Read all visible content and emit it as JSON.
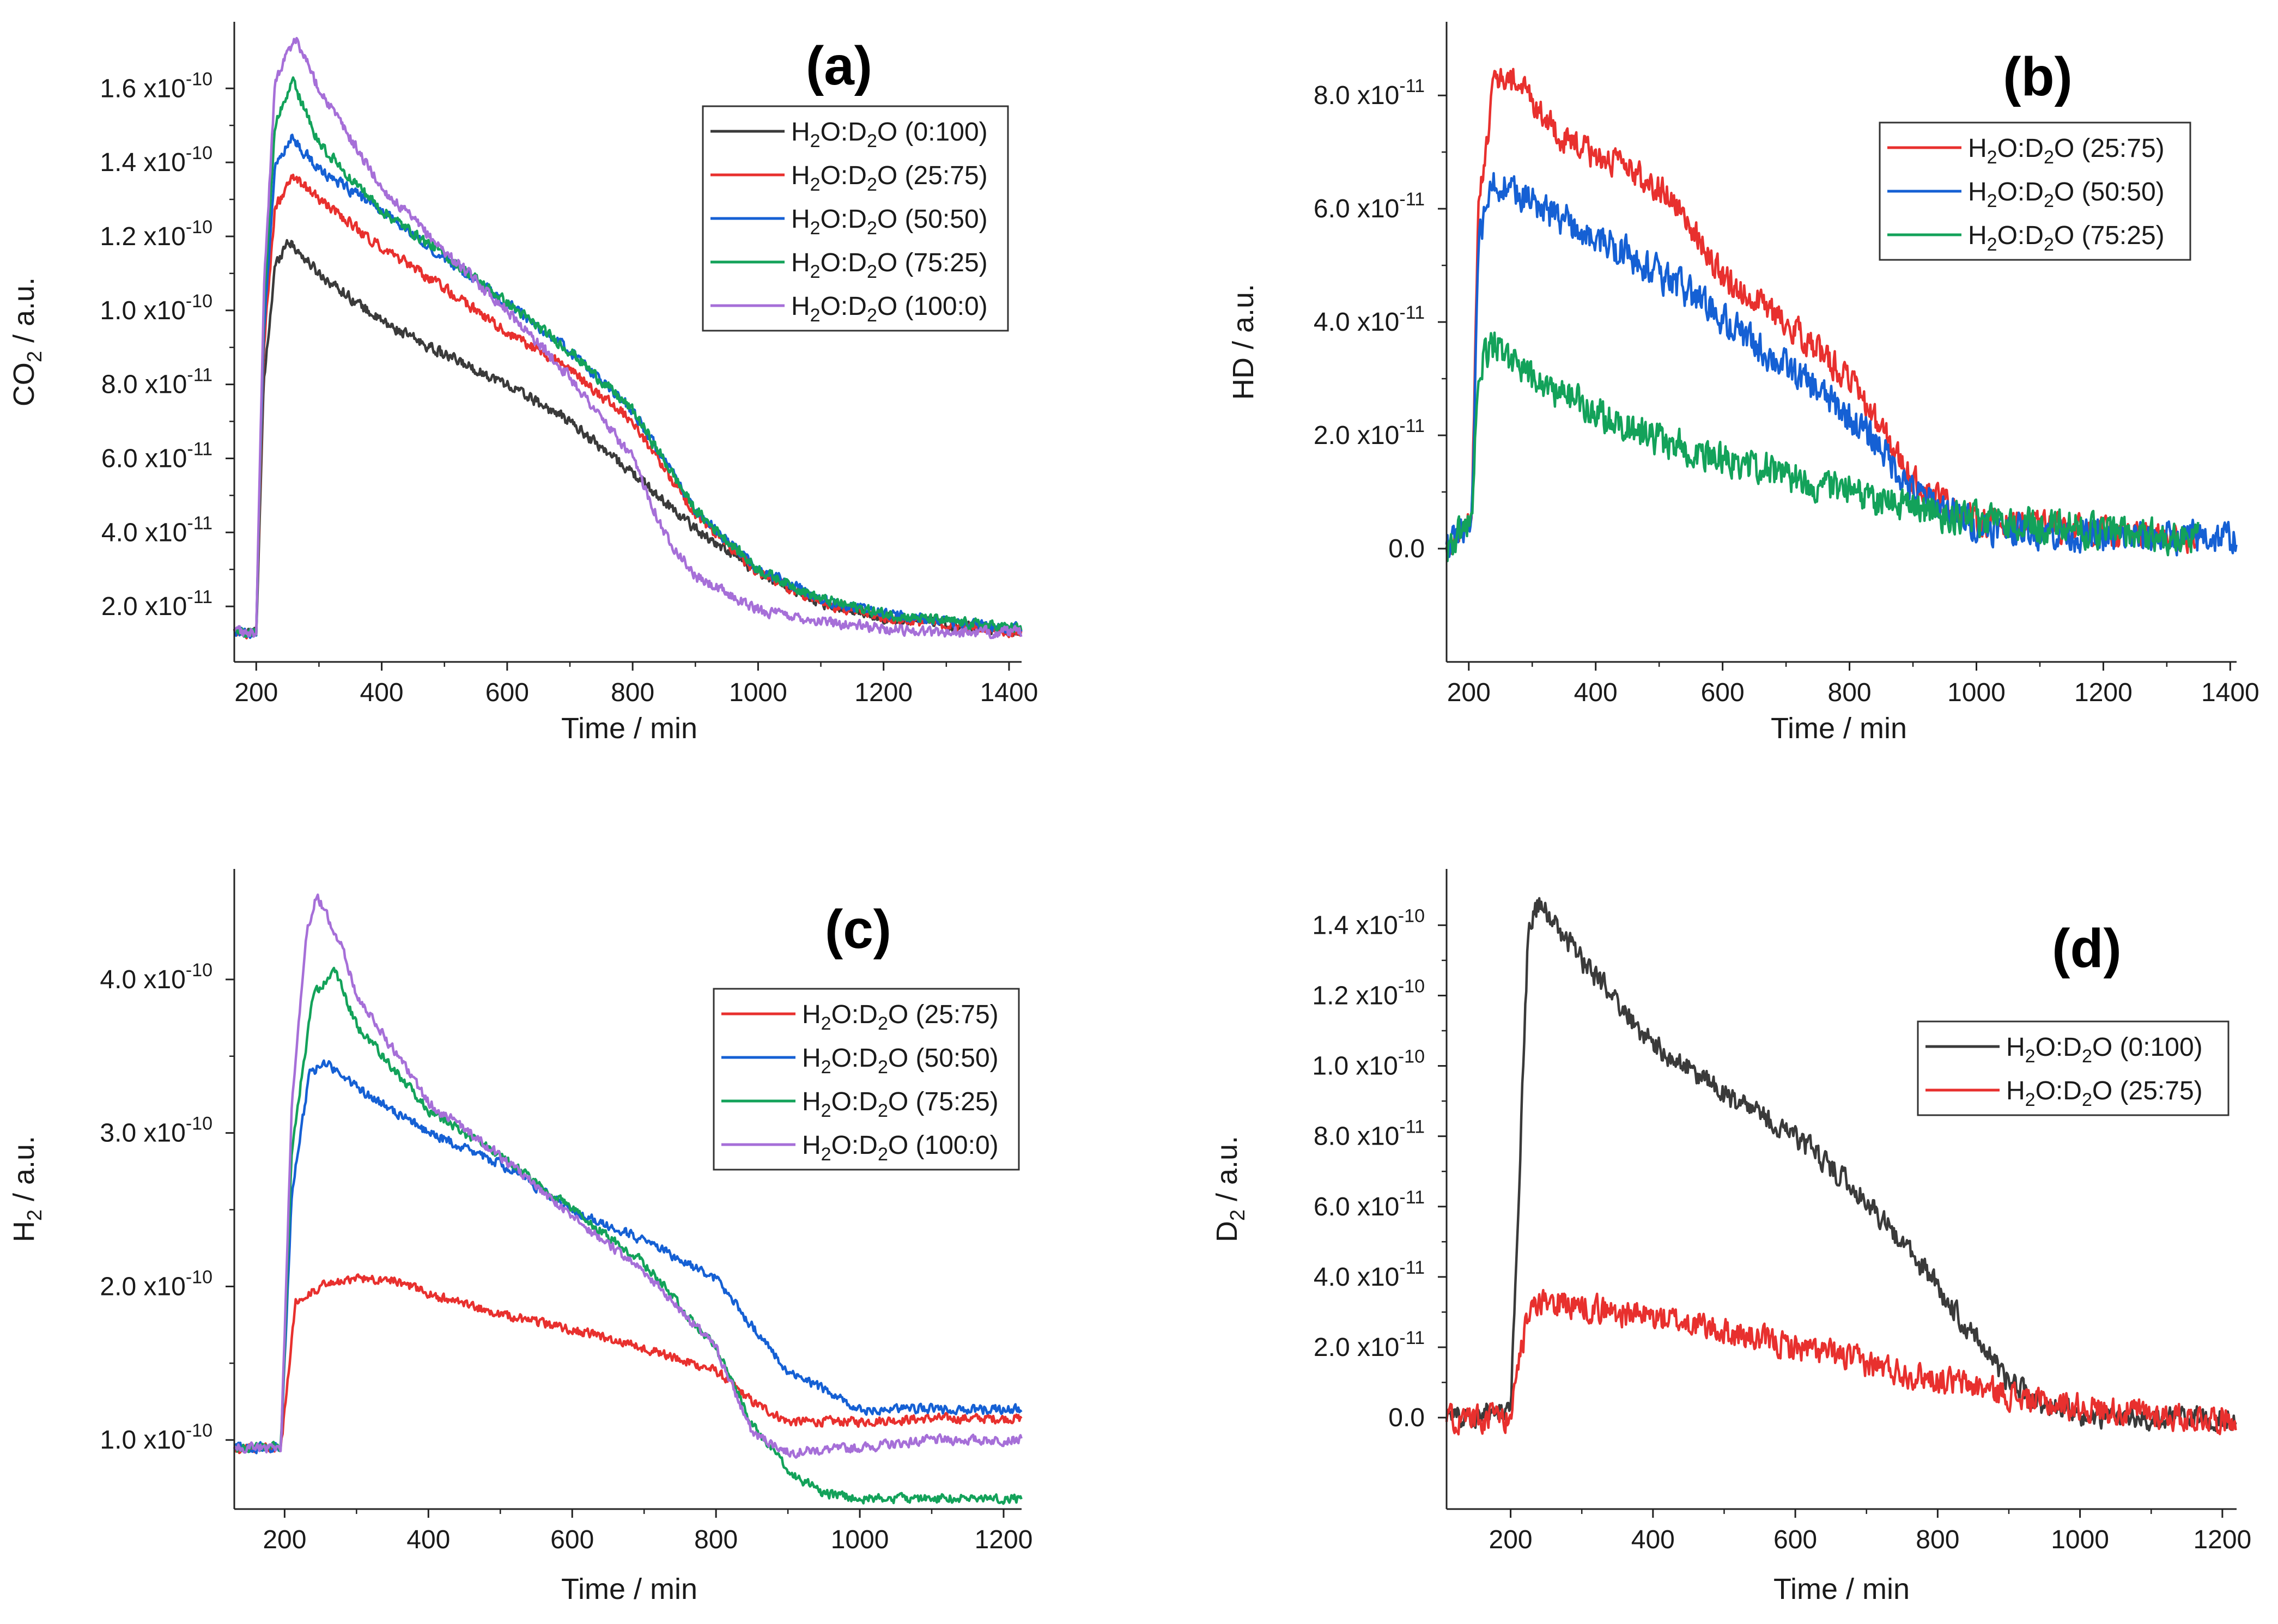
{
  "chart_data": [
    {
      "id": "a",
      "type": "line",
      "panel_label": "(a)",
      "xlabel": "Time / min",
      "ylabel": "CO₂ / a.u.",
      "ylabel_main": "CO",
      "ylabel_sub": "2",
      "ylabel_tail": " / a.u.",
      "xlim": [
        165,
        1420
      ],
      "ylim": [
        5e-12,
        1.78e-10
      ],
      "xticks": [
        200,
        400,
        600,
        800,
        1000,
        1200,
        1400
      ],
      "yticks": [
        {
          "value": 2e-11,
          "mant": "2.0 x10",
          "exp": "-11"
        },
        {
          "value": 4e-11,
          "mant": "4.0 x10",
          "exp": "-11"
        },
        {
          "value": 6e-11,
          "mant": "6.0 x10",
          "exp": "-11"
        },
        {
          "value": 8e-11,
          "mant": "8.0 x10",
          "exp": "-11"
        },
        {
          "value": 1e-10,
          "mant": "1.0 x10",
          "exp": "-10"
        },
        {
          "value": 1.2e-10,
          "mant": "1.2 x10",
          "exp": "-10"
        },
        {
          "value": 1.4e-10,
          "mant": "1.4 x10",
          "exp": "-10"
        },
        {
          "value": 1.6e-10,
          "mant": "1.6 x10",
          "exp": "-10"
        }
      ],
      "legend_position": "top-right",
      "series": [
        {
          "name": "H₂O:D₂O (0:100)",
          "ratio": "(0:100)",
          "color": "#3a3a3a",
          "noise": 0.022,
          "x": [
            165,
            200,
            212,
            230,
            250,
            300,
            400,
            500,
            600,
            700,
            800,
            900,
            1000,
            1100,
            1200,
            1300,
            1420
          ],
          "y": [
            1.3e-11,
            1.3e-11,
            8e-11,
            1.12e-10,
            1.19e-10,
            1.1e-10,
            9.7e-11,
            8.8e-11,
            8e-11,
            7e-11,
            5.6e-11,
            4.1e-11,
            2.9e-11,
            2.1e-11,
            1.7e-11,
            1.5e-11,
            1.3e-11
          ]
        },
        {
          "name": "H₂O:D₂O (25:75)",
          "ratio": "(25:75)",
          "color": "#e8302e",
          "noise": 0.022,
          "x": [
            165,
            200,
            212,
            230,
            260,
            300,
            400,
            500,
            600,
            700,
            800,
            900,
            1000,
            1100,
            1200,
            1300,
            1420
          ],
          "y": [
            1.3e-11,
            1.3e-11,
            9e-11,
            1.28e-10,
            1.36e-10,
            1.3e-10,
            1.17e-10,
            1.06e-10,
            9.4e-11,
            8.4e-11,
            7e-11,
            4.5e-11,
            2.9e-11,
            2.1e-11,
            1.7e-11,
            1.5e-11,
            1.3e-11
          ]
        },
        {
          "name": "H₂O:D₂O (50:50)",
          "ratio": "(50:50)",
          "color": "#1560d4",
          "noise": 0.022,
          "x": [
            165,
            200,
            212,
            230,
            255,
            300,
            400,
            500,
            600,
            700,
            800,
            900,
            1000,
            1100,
            1200,
            1300,
            1420
          ],
          "y": [
            1.3e-11,
            1.3e-11,
            9.5e-11,
            1.38e-10,
            1.47e-10,
            1.38e-10,
            1.27e-10,
            1.14e-10,
            1.02e-10,
            8.9e-11,
            7.3e-11,
            4.6e-11,
            3e-11,
            2.2e-11,
            1.8e-11,
            1.6e-11,
            1.4e-11
          ]
        },
        {
          "name": "H₂O:D₂O (75:25)",
          "ratio": "(75:25)",
          "color": "#13a25a",
          "noise": 0.022,
          "x": [
            165,
            200,
            212,
            230,
            258,
            300,
            400,
            500,
            600,
            700,
            800,
            900,
            1000,
            1100,
            1200,
            1300,
            1420
          ],
          "y": [
            1.3e-11,
            1.3e-11,
            1e-10,
            1.5e-10,
            1.62e-10,
            1.45e-10,
            1.27e-10,
            1.15e-10,
            1.02e-10,
            8.9e-11,
            7.3e-11,
            4.6e-11,
            3e-11,
            2.2e-11,
            1.8e-11,
            1.6e-11,
            1.4e-11
          ]
        },
        {
          "name": "H₂O:D₂O (100:0)",
          "ratio": "(100:0)",
          "color": "#a66fd8",
          "noise": 0.022,
          "x": [
            165,
            200,
            212,
            230,
            262,
            300,
            400,
            500,
            600,
            700,
            800,
            850,
            900,
            1000,
            1100,
            1200,
            1300,
            1420
          ],
          "y": [
            1.3e-11,
            1.3e-11,
            1.05e-10,
            1.62e-10,
            1.74e-10,
            1.6e-10,
            1.33e-10,
            1.16e-10,
            1e-10,
            8.2e-11,
            6e-11,
            4e-11,
            2.8e-11,
            1.9e-11,
            1.6e-11,
            1.4e-11,
            1.3e-11,
            1.3e-11
          ]
        }
      ]
    },
    {
      "id": "b",
      "type": "line",
      "panel_label": "(b)",
      "xlabel": "Time / min",
      "ylabel": "HD / a.u.",
      "ylabel_main": "HD / a.u.",
      "ylabel_sub": "",
      "ylabel_tail": "",
      "xlim": [
        165,
        1410
      ],
      "ylim": [
        -2e-11,
        9.3e-11
      ],
      "xticks": [
        200,
        400,
        600,
        800,
        1000,
        1200,
        1400
      ],
      "yticks": [
        {
          "value": 0,
          "mant": "0.0",
          "exp": ""
        },
        {
          "value": 2e-11,
          "mant": "2.0 x10",
          "exp": "-11"
        },
        {
          "value": 4e-11,
          "mant": "4.0 x10",
          "exp": "-11"
        },
        {
          "value": 6e-11,
          "mant": "6.0 x10",
          "exp": "-11"
        },
        {
          "value": 8e-11,
          "mant": "8.0 x10",
          "exp": "-11"
        }
      ],
      "legend_position": "top-right",
      "series": [
        {
          "name": "H₂O:D₂O (25:75)",
          "ratio": "(25:75)",
          "color": "#e8302e",
          "noise": 0.06,
          "x": [
            165,
            205,
            215,
            240,
            280,
            350,
            450,
            520,
            600,
            700,
            800,
            900,
            1000,
            1100,
            1200,
            1300,
            1350
          ],
          "y": [
            0,
            5e-12,
            6e-11,
            8.3e-11,
            8.2e-11,
            7.2e-11,
            6.7e-11,
            6.2e-11,
            4.8e-11,
            4e-11,
            3e-11,
            1.2e-11,
            5e-12,
            4e-12,
            3e-12,
            2e-12,
            2e-12
          ]
        },
        {
          "name": "H₂O:D₂O (50:50)",
          "ratio": "(50:50)",
          "color": "#1560d4",
          "noise": 0.07,
          "x": [
            165,
            205,
            215,
            240,
            280,
            350,
            450,
            550,
            650,
            750,
            850,
            900,
            1000,
            1100,
            1200,
            1300,
            1410
          ],
          "y": [
            0,
            5e-12,
            5.5e-11,
            6.5e-11,
            6.2e-11,
            5.8e-11,
            5.2e-11,
            4.5e-11,
            3.6e-11,
            2.8e-11,
            1.8e-11,
            1e-11,
            4e-12,
            3e-12,
            2e-12,
            2e-12,
            2e-12
          ]
        },
        {
          "name": "H₂O:D₂O (75:25)",
          "ratio": "(75:25)",
          "color": "#13a25a",
          "noise": 0.07,
          "x": [
            165,
            205,
            215,
            240,
            300,
            400,
            500,
            600,
            700,
            800,
            900,
            1000,
            1100,
            1200,
            1300,
            1350
          ],
          "y": [
            0,
            5e-12,
            3.2e-11,
            3.6e-11,
            3e-11,
            2.4e-11,
            1.9e-11,
            1.6e-11,
            1.3e-11,
            1e-11,
            7e-12,
            5e-12,
            4e-12,
            3e-12,
            2e-12,
            2e-12
          ]
        }
      ]
    },
    {
      "id": "c",
      "type": "line",
      "panel_label": "(c)",
      "xlabel": "Time / min",
      "ylabel": "H₂ / a.u.",
      "ylabel_main": "H",
      "ylabel_sub": "2",
      "ylabel_tail": " / a.u.",
      "xlim": [
        130,
        1225
      ],
      "ylim": [
        5.5e-11,
        4.72e-10
      ],
      "xticks": [
        200,
        400,
        600,
        800,
        1000,
        1200
      ],
      "yticks": [
        {
          "value": 1e-10,
          "mant": "1.0 x10",
          "exp": "-10"
        },
        {
          "value": 2e-10,
          "mant": "2.0 x10",
          "exp": "-10"
        },
        {
          "value": 3e-10,
          "mant": "3.0 x10",
          "exp": "-10"
        },
        {
          "value": 4e-10,
          "mant": "4.0 x10",
          "exp": "-10"
        }
      ],
      "legend_position": "top-right",
      "series": [
        {
          "name": "H₂O:D₂O (25:75)",
          "ratio": "(25:75)",
          "color": "#e8302e",
          "noise": 0.02,
          "x": [
            130,
            195,
            215,
            250,
            300,
            350,
            400,
            500,
            600,
            700,
            800,
            850,
            900,
            1000,
            1100,
            1225
          ],
          "y": [
            9.5e-11,
            9.5e-11,
            1.9e-10,
            2e-10,
            2.05e-10,
            2.05e-10,
            1.95e-10,
            1.82e-10,
            1.72e-10,
            1.6e-10,
            1.45e-10,
            1.25e-10,
            1.12e-10,
            1.12e-10,
            1.14e-10,
            1.14e-10
          ]
        },
        {
          "name": "H₂O:D₂O (50:50)",
          "ratio": "(50:50)",
          "color": "#1560d4",
          "noise": 0.02,
          "x": [
            130,
            195,
            210,
            235,
            260,
            300,
            400,
            500,
            600,
            700,
            800,
            840,
            900,
            1000,
            1100,
            1225
          ],
          "y": [
            9.5e-11,
            9.5e-11,
            2.6e-10,
            3.4e-10,
            3.45e-10,
            3.3e-10,
            3e-10,
            2.8e-10,
            2.5e-10,
            2.3e-10,
            2.05e-10,
            1.8e-10,
            1.45e-10,
            1.2e-10,
            1.2e-10,
            1.2e-10
          ]
        },
        {
          "name": "H₂O:D₂O (75:25)",
          "ratio": "(75:25)",
          "color": "#13a25a",
          "noise": 0.02,
          "x": [
            130,
            195,
            210,
            240,
            270,
            300,
            400,
            500,
            600,
            700,
            800,
            850,
            900,
            950,
            1000,
            1225
          ],
          "y": [
            9.5e-11,
            9.5e-11,
            2.9e-10,
            3.9e-10,
            4.05e-10,
            3.7e-10,
            3.15e-10,
            2.85e-10,
            2.5e-10,
            2.15e-10,
            1.6e-10,
            1.1e-10,
            8e-11,
            6.5e-11,
            6.2e-11,
            6.2e-11
          ]
        },
        {
          "name": "H₂O:D₂O (100:0)",
          "ratio": "(100:0)",
          "color": "#a66fd8",
          "noise": 0.02,
          "x": [
            130,
            195,
            210,
            230,
            245,
            280,
            300,
            400,
            500,
            600,
            700,
            800,
            850,
            900,
            1000,
            1100,
            1225
          ],
          "y": [
            9.5e-11,
            9.5e-11,
            3.2e-10,
            4.3e-10,
            4.55e-10,
            4.2e-10,
            3.9e-10,
            3.2e-10,
            2.85e-10,
            2.45e-10,
            2.1e-10,
            1.6e-10,
            1.05e-10,
            9.2e-11,
            9.5e-11,
            1e-10,
            1e-10
          ]
        }
      ]
    },
    {
      "id": "d",
      "type": "line",
      "panel_label": "(d)",
      "xlabel": "Time / min",
      "ylabel": "D₂ / a.u.",
      "ylabel_main": "D",
      "ylabel_sub": "2",
      "ylabel_tail": " / a.u.",
      "xlim": [
        110,
        1220
      ],
      "ylim": [
        -2.6e-11,
        1.56e-10
      ],
      "xticks": [
        200,
        400,
        600,
        800,
        1000,
        1200
      ],
      "yticks": [
        {
          "value": 0,
          "mant": "0.0",
          "exp": ""
        },
        {
          "value": 2e-11,
          "mant": "2.0 x10",
          "exp": "-11"
        },
        {
          "value": 4e-11,
          "mant": "4.0 x10",
          "exp": "-11"
        },
        {
          "value": 6e-11,
          "mant": "6.0 x10",
          "exp": "-11"
        },
        {
          "value": 8e-11,
          "mant": "8.0 x10",
          "exp": "-11"
        },
        {
          "value": 1e-10,
          "mant": "1.0 x10",
          "exp": "-10"
        },
        {
          "value": 1.2e-10,
          "mant": "1.2 x10",
          "exp": "-10"
        },
        {
          "value": 1.4e-10,
          "mant": "1.4 x10",
          "exp": "-10"
        }
      ],
      "legend_position": "right",
      "series": [
        {
          "name": "H₂O:D₂O (0:100)",
          "ratio": "(0:100)",
          "color": "#3a3a3a",
          "noise": 0.05,
          "x": [
            110,
            200,
            225,
            240,
            300,
            400,
            500,
            600,
            700,
            800,
            850,
            900,
            950,
            1000,
            1100,
            1220
          ],
          "y": [
            0,
            2e-12,
            1.4e-10,
            1.46e-10,
            1.3e-10,
            1.06e-10,
            9.2e-11,
            8e-11,
            6.2e-11,
            3.7e-11,
            2.4e-11,
            1e-11,
            3e-12,
            0,
            0,
            0
          ]
        },
        {
          "name": "H₂O:D₂O (25:75)",
          "ratio": "(25:75)",
          "color": "#e8302e",
          "noise": 0.06,
          "x": [
            110,
            200,
            225,
            260,
            350,
            450,
            550,
            650,
            750,
            850,
            950,
            1050,
            1150,
            1220
          ],
          "y": [
            0,
            0,
            3e-11,
            3.3e-11,
            3e-11,
            2.7e-11,
            2.2e-11,
            1.8e-11,
            1.3e-11,
            9e-12,
            4e-12,
            2e-12,
            0,
            0
          ]
        }
      ]
    }
  ]
}
